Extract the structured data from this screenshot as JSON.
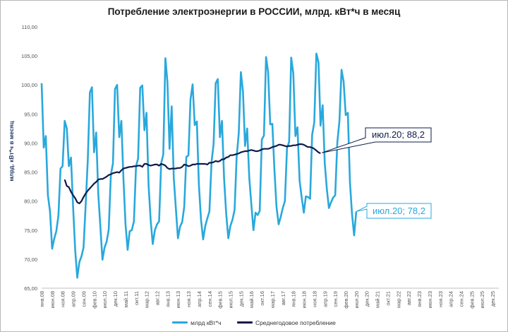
{
  "chart_data": {
    "type": "line",
    "title": "Потребление электроэнергии в РОССИИ, млрд. кВт*ч в месяц",
    "ylabel": "млрд. кВт*ч в месяц",
    "ylim": [
      65,
      110
    ],
    "yticks": [
      "65,00",
      "70,00",
      "75,00",
      "80,00",
      "85,00",
      "90,00",
      "95,00",
      "100,00",
      "105,00",
      "110,00"
    ],
    "x_tick_labels": [
      "янв.08",
      "июн.08",
      "ноя.08",
      "апр.09",
      "сен.09",
      "фев.10",
      "июл.10",
      "дек.10",
      "май.11",
      "окт.11",
      "мар.12",
      "авг.12",
      "янв.13",
      "июн.13",
      "ноя.13",
      "апр.14",
      "сен.14",
      "фев.15",
      "июл.15",
      "дек.15",
      "май.16",
      "окт.16",
      "мар.17",
      "авг.17",
      "янв.18",
      "июн.18",
      "ноя.18",
      "апр.19",
      "сен.19",
      "фев.20",
      "июл.20",
      "дек.20",
      "май.21",
      "окт.21",
      "мар.22",
      "авг.22",
      "янв.23",
      "июн.23",
      "ноя.23",
      "апр.24",
      "сен.24",
      "фев.25",
      "июл.25",
      "дек.25"
    ],
    "legend_position": "bottom",
    "grid": false,
    "series": [
      {
        "name": "млрд кВт*ч",
        "color": "#29a8dc",
        "values": [
          100.3,
          89.2,
          91.2,
          81.0,
          78.2,
          71.8,
          73.5,
          74.8,
          77.5,
          85.6,
          86.0,
          93.8,
          92.5,
          86.0,
          87.5,
          79.0,
          71.5,
          66.8,
          69.5,
          70.5,
          72.0,
          79.3,
          87.0,
          98.7,
          99.6,
          88.4,
          91.8,
          81.2,
          75.7,
          69.9,
          72.0,
          73.0,
          75.1,
          84.5,
          86.5,
          99.3,
          100.0,
          91.0,
          93.8,
          84.0,
          76.0,
          71.6,
          74.8,
          75.0,
          76.5,
          86.0,
          87.3,
          99.5,
          99.9,
          92.2,
          95.2,
          82.7,
          76.6,
          72.6,
          75.0,
          76.0,
          76.5,
          86.5,
          88.0,
          104.6,
          100.5,
          89.0,
          96.3,
          84.0,
          78.8,
          73.6,
          75.6,
          76.4,
          79.0,
          87.6,
          87.9,
          97.5,
          100.1,
          93.1,
          93.7,
          82.8,
          76.8,
          73.4,
          75.7,
          77.0,
          78.2,
          86.7,
          89.8,
          100.3,
          101.0,
          91.0,
          93.8,
          83.9,
          77.8,
          73.6,
          75.7,
          76.8,
          78.5,
          87.6,
          91.7,
          102.2,
          98.8,
          89.5,
          92.5,
          84.0,
          79.5,
          75.0,
          78.0,
          77.6,
          78.3,
          90.6,
          91.3,
          104.8,
          102.2,
          93.2,
          93.3,
          85.5,
          79.0,
          76.0,
          77.3,
          78.8,
          80.0,
          89.2,
          90.2,
          104.7,
          102.0,
          91.2,
          92.7,
          83.6,
          80.6,
          78.0,
          80.8,
          80.7,
          80.4,
          91.4,
          93.5,
          105.4,
          103.9,
          93.0,
          96.5,
          86.5,
          82.0,
          78.8,
          79.8,
          80.6,
          81.0,
          90.1,
          93.8,
          102.6,
          100.6,
          94.8,
          95.2,
          83.2,
          77.8,
          74.1,
          78.2
        ]
      },
      {
        "name": "Среднегодовое потребление",
        "color": "#0d1b4a",
        "start_index": 11,
        "values": [
          83.7,
          82.6,
          82.4,
          81.6,
          81.0,
          80.5,
          79.8,
          79.6,
          80.0,
          80.7,
          81.3,
          81.8,
          82.2,
          82.6,
          83.0,
          83.3,
          83.7,
          83.8,
          83.8,
          84.0,
          84.2,
          84.5,
          84.6,
          84.8,
          84.9,
          85.0,
          84.9,
          85.3,
          85.6,
          85.7,
          85.8,
          85.9,
          85.9,
          86.0,
          86.0,
          86.1,
          86.1,
          85.9,
          86.4,
          86.4,
          86.2,
          86.1,
          86.2,
          86.3,
          86.3,
          86.1,
          86.4,
          86.3,
          86.1,
          85.7,
          85.5,
          85.6,
          85.6,
          85.6,
          85.7,
          85.7,
          85.9,
          86.3,
          86.2,
          86.0,
          86.1,
          86.3,
          86.3,
          86.4,
          86.4,
          86.4,
          86.4,
          86.4,
          86.3,
          86.6,
          86.6,
          86.7,
          86.9,
          86.8,
          86.9,
          87.2,
          87.2,
          87.5,
          87.6,
          87.9,
          87.9,
          88.0,
          88.1,
          88.2,
          88.4,
          88.5,
          88.6,
          88.6,
          88.7,
          88.8,
          88.7,
          88.6,
          88.6,
          88.7,
          88.9,
          89.0,
          89.0,
          89.0,
          89.1,
          89.3,
          89.4,
          89.5,
          89.7,
          89.7,
          89.6,
          89.5,
          89.4,
          89.5,
          89.5,
          89.6,
          89.6,
          89.7,
          89.8,
          89.8,
          89.7,
          89.5,
          89.3,
          89.3,
          89.2,
          89.0,
          88.7,
          88.4,
          88.2
        ]
      }
    ],
    "annotations": [
      {
        "text": "июл.20; 88,2",
        "series": 1,
        "color": "#0d1b4a"
      },
      {
        "text": "июл.20; 78,2",
        "series": 0,
        "color": "#29a8dc"
      }
    ]
  }
}
